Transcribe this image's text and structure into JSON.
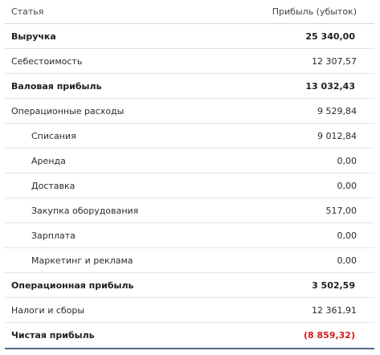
{
  "table": {
    "headers": {
      "item": "Статья",
      "value": "Прибыль (убыток)"
    },
    "rows": [
      {
        "label": "Выручка",
        "value": "25 340,00",
        "bold": true,
        "indent": false
      },
      {
        "label": "Себестоимость",
        "value": "12 307,57",
        "bold": false,
        "indent": false
      },
      {
        "label": "Валовая прибыль",
        "value": "13 032,43",
        "bold": true,
        "indent": false
      },
      {
        "label": "Операционные расходы",
        "value": "9 529,84",
        "bold": false,
        "indent": false
      },
      {
        "label": "Списания",
        "value": "9 012,84",
        "bold": false,
        "indent": true
      },
      {
        "label": "Аренда",
        "value": "0,00",
        "bold": false,
        "indent": true
      },
      {
        "label": "Доставка",
        "value": "0,00",
        "bold": false,
        "indent": true
      },
      {
        "label": "Закупка оборудования",
        "value": "517,00",
        "bold": false,
        "indent": true
      },
      {
        "label": "Зарплата",
        "value": "0,00",
        "bold": false,
        "indent": true
      },
      {
        "label": "Маркетинг и реклама",
        "value": "0,00",
        "bold": false,
        "indent": true
      },
      {
        "label": "Операционная прибыль",
        "value": "3 502,59",
        "bold": true,
        "indent": false
      },
      {
        "label": "Налоги и сборы",
        "value": "12 361,91",
        "bold": false,
        "indent": false
      },
      {
        "label": "Чистая прибыль",
        "value": "(8 859,32)",
        "bold": true,
        "indent": false,
        "negative": true
      }
    ]
  },
  "colors": {
    "negative": "#d21d1d",
    "bottom_border": "#4c6a8a"
  }
}
